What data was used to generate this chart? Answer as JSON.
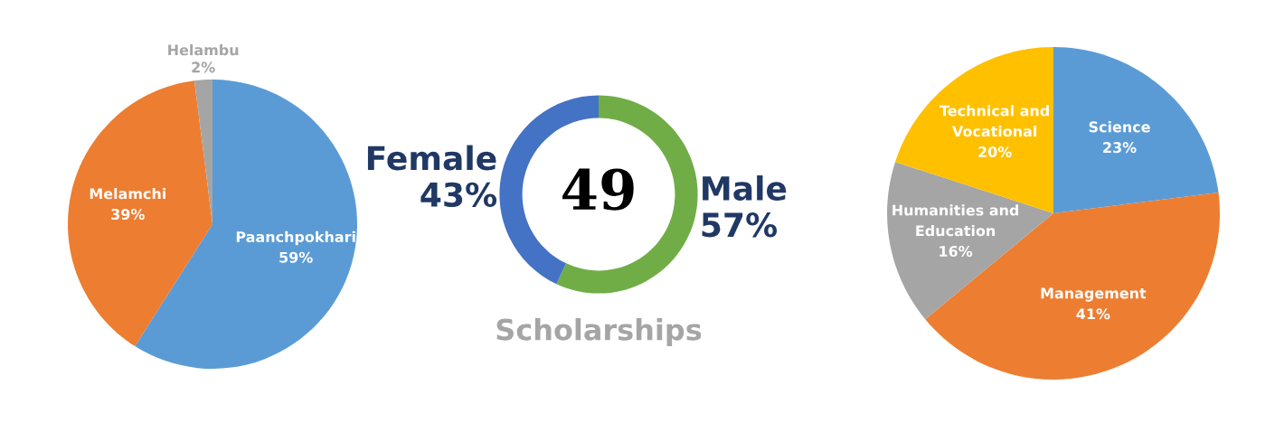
{
  "chart_data": [
    {
      "type": "pie",
      "categories": [
        "Paanchpokhari",
        "Melamchi",
        "Helambu"
      ],
      "values": [
        59,
        39,
        2
      ],
      "value_labels": [
        "59%",
        "39%",
        "2%"
      ],
      "colors": [
        "#5b9bd5",
        "#ed7d31",
        "#a5a5a5"
      ]
    },
    {
      "type": "donut",
      "title": "Scholarships",
      "annotations": [
        "49"
      ],
      "categories": [
        "Male",
        "Female"
      ],
      "values": [
        57,
        43
      ],
      "value_labels": [
        "57%",
        "43%"
      ],
      "colors": [
        "#70ad47",
        "#4472c4"
      ]
    },
    {
      "type": "pie",
      "categories": [
        "Science",
        "Management",
        "Humanities and\nEducation",
        "Technical and\nVocational"
      ],
      "values": [
        23,
        41,
        16,
        20
      ],
      "value_labels": [
        "23%",
        "41%",
        "16%",
        "20%"
      ],
      "colors": [
        "#5b9bd5",
        "#ed7d31",
        "#a5a5a5",
        "#ffc000"
      ]
    }
  ]
}
